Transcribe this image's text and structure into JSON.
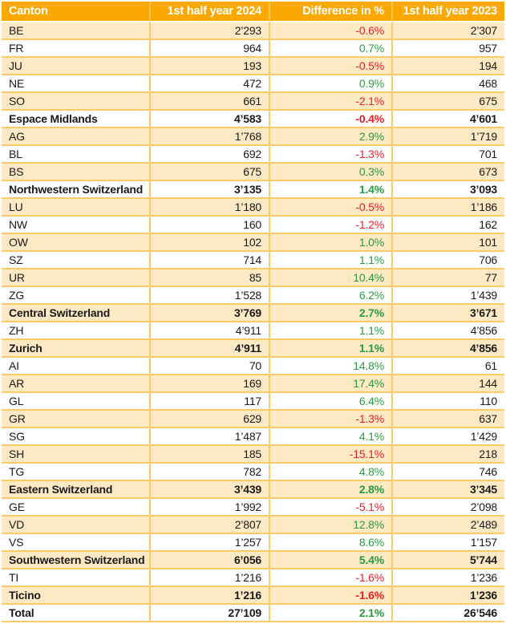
{
  "colors": {
    "header_bg": "#fba800",
    "header_text": "#ffffff",
    "row_alt_bg": "#fdeac4",
    "row_bg": "#ffffff",
    "grid_border": "#f8ca68",
    "positive_pct": "#279b3d",
    "negative_pct": "#ee1c25",
    "body_text": "#1a1a1a"
  },
  "chart_data": {
    "type": "table",
    "columns": [
      "Canton",
      "1st half year 2024",
      "Difference in %",
      "1st half year 2023"
    ],
    "rows": [
      {
        "canton": "BE",
        "h1_2024": "2’293",
        "diff_pct": "-0.6%",
        "h1_2023": "2’307",
        "is_summary": false
      },
      {
        "canton": "FR",
        "h1_2024": "964",
        "diff_pct": "0.7%",
        "h1_2023": "957",
        "is_summary": false
      },
      {
        "canton": "JU",
        "h1_2024": "193",
        "diff_pct": "-0.5%",
        "h1_2023": "194",
        "is_summary": false
      },
      {
        "canton": "NE",
        "h1_2024": "472",
        "diff_pct": "0.9%",
        "h1_2023": "468",
        "is_summary": false
      },
      {
        "canton": "SO",
        "h1_2024": "661",
        "diff_pct": "-2.1%",
        "h1_2023": "675",
        "is_summary": false
      },
      {
        "canton": "Espace Midlands",
        "h1_2024": "4’583",
        "diff_pct": "-0.4%",
        "h1_2023": "4’601",
        "is_summary": true
      },
      {
        "canton": "AG",
        "h1_2024": "1’768",
        "diff_pct": "2.9%",
        "h1_2023": "1’719",
        "is_summary": false
      },
      {
        "canton": "BL",
        "h1_2024": "692",
        "diff_pct": "-1.3%",
        "h1_2023": "701",
        "is_summary": false
      },
      {
        "canton": "BS",
        "h1_2024": "675",
        "diff_pct": "0.3%",
        "h1_2023": "673",
        "is_summary": false
      },
      {
        "canton": "Northwestern Switzerland",
        "h1_2024": "3’135",
        "diff_pct": "1.4%",
        "h1_2023": "3’093",
        "is_summary": true
      },
      {
        "canton": "LU",
        "h1_2024": "1’180",
        "diff_pct": "-0.5%",
        "h1_2023": "1’186",
        "is_summary": false
      },
      {
        "canton": "NW",
        "h1_2024": "160",
        "diff_pct": "-1.2%",
        "h1_2023": "162",
        "is_summary": false
      },
      {
        "canton": "OW",
        "h1_2024": "102",
        "diff_pct": "1.0%",
        "h1_2023": "101",
        "is_summary": false
      },
      {
        "canton": "SZ",
        "h1_2024": "714",
        "diff_pct": "1.1%",
        "h1_2023": "706",
        "is_summary": false
      },
      {
        "canton": "UR",
        "h1_2024": "85",
        "diff_pct": "10.4%",
        "h1_2023": "77",
        "is_summary": false
      },
      {
        "canton": "ZG",
        "h1_2024": "1’528",
        "diff_pct": "6.2%",
        "h1_2023": "1’439",
        "is_summary": false
      },
      {
        "canton": "Central Switzerland",
        "h1_2024": "3’769",
        "diff_pct": "2.7%",
        "h1_2023": "3’671",
        "is_summary": true
      },
      {
        "canton": "ZH",
        "h1_2024": "4’911",
        "diff_pct": "1.1%",
        "h1_2023": "4’856",
        "is_summary": false
      },
      {
        "canton": "Zurich",
        "h1_2024": "4’911",
        "diff_pct": "1.1%",
        "h1_2023": "4’856",
        "is_summary": true
      },
      {
        "canton": "AI",
        "h1_2024": "70",
        "diff_pct": "14.8%",
        "h1_2023": "61",
        "is_summary": false
      },
      {
        "canton": "AR",
        "h1_2024": "169",
        "diff_pct": "17.4%",
        "h1_2023": "144",
        "is_summary": false
      },
      {
        "canton": "GL",
        "h1_2024": "117",
        "diff_pct": "6.4%",
        "h1_2023": "110",
        "is_summary": false
      },
      {
        "canton": "GR",
        "h1_2024": "629",
        "diff_pct": "-1.3%",
        "h1_2023": "637",
        "is_summary": false
      },
      {
        "canton": "SG",
        "h1_2024": "1’487",
        "diff_pct": "4.1%",
        "h1_2023": "1’429",
        "is_summary": false
      },
      {
        "canton": "SH",
        "h1_2024": "185",
        "diff_pct": "-15.1%",
        "h1_2023": "218",
        "is_summary": false
      },
      {
        "canton": "TG",
        "h1_2024": "782",
        "diff_pct": "4.8%",
        "h1_2023": "746",
        "is_summary": false
      },
      {
        "canton": "Eastern Switzerland",
        "h1_2024": "3’439",
        "diff_pct": "2.8%",
        "h1_2023": "3’345",
        "is_summary": true
      },
      {
        "canton": "GE",
        "h1_2024": "1’992",
        "diff_pct": "-5.1%",
        "h1_2023": "2’098",
        "is_summary": false
      },
      {
        "canton": "VD",
        "h1_2024": "2’807",
        "diff_pct": "12.8%",
        "h1_2023": "2’489",
        "is_summary": false
      },
      {
        "canton": "VS",
        "h1_2024": "1’257",
        "diff_pct": "8.6%",
        "h1_2023": "1’157",
        "is_summary": false
      },
      {
        "canton": "Southwestern Switzerland",
        "h1_2024": "6’056",
        "diff_pct": "5.4%",
        "h1_2023": "5’744",
        "is_summary": true
      },
      {
        "canton": "TI",
        "h1_2024": "1’216",
        "diff_pct": "-1.6%",
        "h1_2023": "1’236",
        "is_summary": false
      },
      {
        "canton": "Ticino",
        "h1_2024": "1’216",
        "diff_pct": "-1.6%",
        "h1_2023": "1’236",
        "is_summary": true
      },
      {
        "canton": "Total",
        "h1_2024": "27’109",
        "diff_pct": "2.1%",
        "h1_2023": "26’546",
        "is_summary": true
      }
    ]
  }
}
